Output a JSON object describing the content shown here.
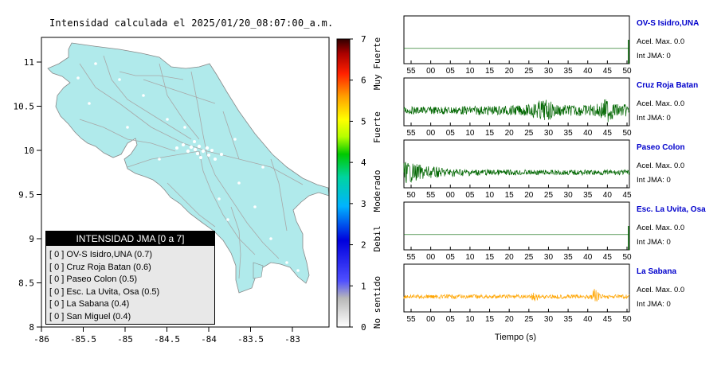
{
  "map": {
    "title": "Intensidad calculada el 2025/01/20_08:07:00_a.m.",
    "xaxis_ticks": [
      "-86",
      "-85.5",
      "-85",
      "-84.5",
      "-84",
      "-83.5",
      "-83"
    ],
    "yaxis_ticks": [
      "11",
      "10.5",
      "10",
      "9.5",
      "9",
      "8.5",
      "8"
    ],
    "land_color": "#b0eaeb",
    "road_color": "#a8a8a8"
  },
  "legend": {
    "title": "INTENSIDAD JMA [0 a 7]",
    "items": [
      "[ 0 ]  OV-S Isidro,UNA (0.7)",
      "[ 0 ]  Cruz Roja Batan (0.6)",
      "[ 0 ]  Paseo Colon (0.5)",
      "[ 0 ]  Esc. La Uvita, Osa (0.5)",
      "[ 0 ]  La Sabana (0.4)",
      "[ 0 ]  San Miguel (0.4)"
    ]
  },
  "colorbar": {
    "ticks": [
      "7",
      "6",
      "5",
      "4",
      "3",
      "2",
      "1",
      "0"
    ],
    "labels": [
      "Muy Fuerte",
      "Fuerte",
      "Moderado",
      "Debil",
      "No sentido"
    ]
  },
  "waveforms": {
    "xlabel": "Tiempo (s)",
    "stations": [
      {
        "name": "OV-S Isidro,UNA",
        "acc": "Acel. Max. 0.0",
        "int": "Int JMA: 0",
        "ticks": [
          "55",
          "00",
          "05",
          "10",
          "15",
          "20",
          "25",
          "30",
          "35",
          "40",
          "45",
          "50"
        ],
        "color": "#006600"
      },
      {
        "name": "Cruz Roja Batan",
        "acc": "Acel. Max. 0.0",
        "int": "Int JMA: 0",
        "ticks": [
          "55",
          "00",
          "05",
          "10",
          "15",
          "20",
          "25",
          "30",
          "35",
          "40",
          "45",
          "50"
        ],
        "color": "#006600"
      },
      {
        "name": "Paseo Colon",
        "acc": "Acel. Max. 0.0",
        "int": "Int JMA: 0",
        "ticks": [
          "50",
          "55",
          "00",
          "05",
          "10",
          "15",
          "20",
          "25",
          "30",
          "35",
          "40",
          "45"
        ],
        "color": "#006600"
      },
      {
        "name": "Esc. La Uvita, Osa",
        "acc": "Acel. Max. 0.0",
        "int": "Int JMA: 0",
        "ticks": [
          "55",
          "00",
          "05",
          "10",
          "15",
          "20",
          "25",
          "30",
          "35",
          "40",
          "45",
          "50"
        ],
        "color": "#006600"
      },
      {
        "name": "La Sabana",
        "acc": "Acel. Max. 0.0",
        "int": "Int JMA: 0",
        "ticks": [
          "55",
          "00",
          "05",
          "10",
          "15",
          "20",
          "25",
          "30",
          "35",
          "40",
          "45",
          "50"
        ],
        "color": "#ffa500"
      }
    ]
  },
  "chart_data": [
    {
      "type": "scatter",
      "title": "Intensidad calculada el 2025/01/20_08:07:00_a.m.",
      "xlim": [
        -86,
        -82.6
      ],
      "ylim": [
        8,
        11.3
      ]
    },
    {
      "type": "line",
      "series": [
        {
          "name": "OV-S Isidro,UNA"
        },
        {
          "name": "Cruz Roja Batan"
        },
        {
          "name": "Paseo Colon"
        },
        {
          "name": "Esc. La Uvita, Osa"
        },
        {
          "name": "La Sabana"
        }
      ],
      "xlabel": "Tiempo (s)"
    }
  ]
}
